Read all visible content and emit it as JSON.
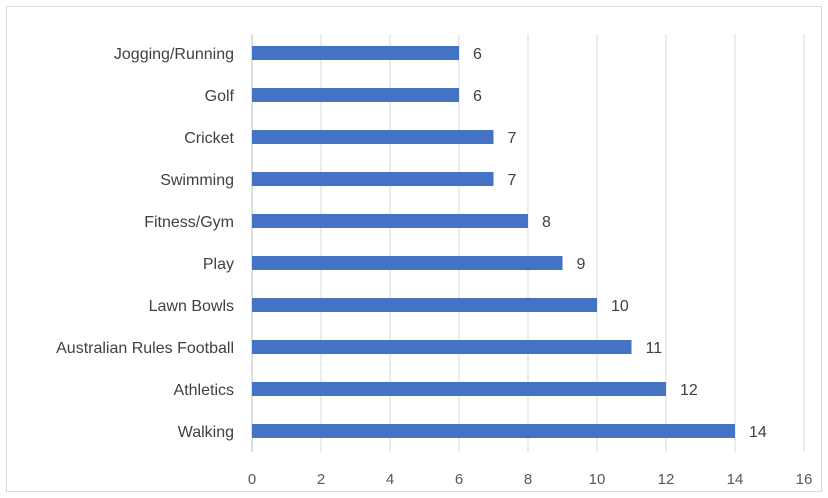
{
  "chart_data": {
    "type": "bar",
    "orientation": "horizontal",
    "title": "",
    "xlabel": "",
    "ylabel": "",
    "categories": [
      "Jogging/Running",
      "Golf",
      "Cricket",
      "Swimming",
      "Fitness/Gym",
      "Play",
      "Lawn Bowls",
      "Australian Rules Football",
      "Athletics",
      "Walking"
    ],
    "values": [
      6,
      6,
      7,
      7,
      8,
      9,
      10,
      11,
      12,
      14
    ],
    "xlim": [
      0,
      16
    ],
    "xticks": [
      0,
      2,
      4,
      6,
      8,
      10,
      12,
      14,
      16
    ],
    "grid": "vertical",
    "legend": "none",
    "bar_color": "#4472c4",
    "data_labels": true
  }
}
